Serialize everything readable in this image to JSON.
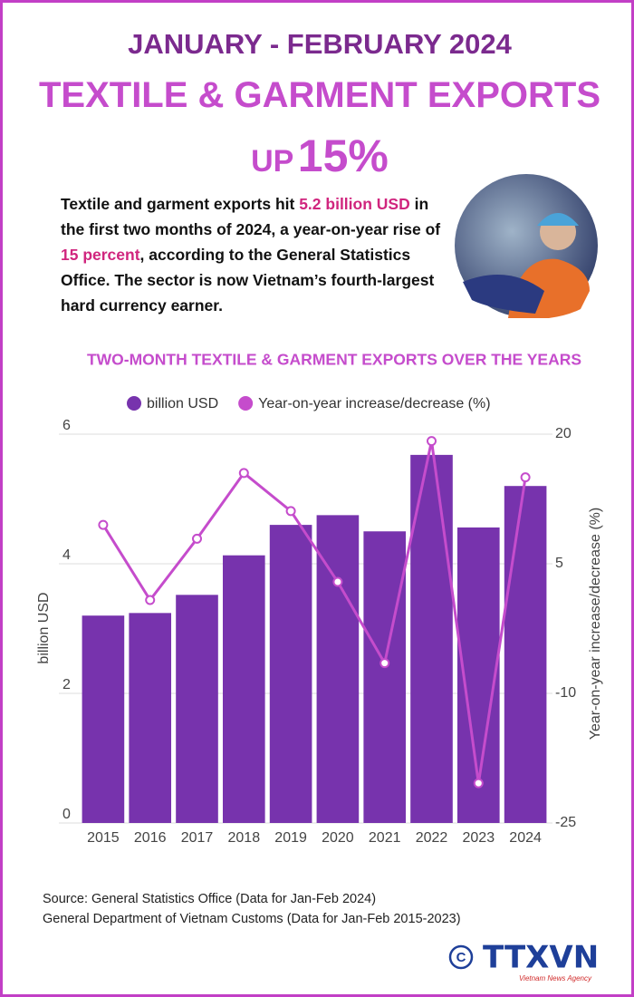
{
  "header": {
    "period": "JANUARY - FEBRUARY 2024",
    "title": "TEXTILE & GARMENT EXPORTS",
    "up": "UP",
    "growth": "15%"
  },
  "intro": [
    "Textile and garment exports hit ",
    "5.2 billion USD",
    " in the first two months of 2024, a year-on-year rise of ",
    "15 percent",
    ", according to the General Statistics Office. The sector is now Vietnam’s fourth-largest hard currency earner."
  ],
  "source": [
    "Source: General Statistics Office (Data for Jan-Feb 2024)",
    "General Department of Vietnam Customs (Data for Jan-Feb 2015-2023)"
  ],
  "logo": {
    "name": "TTXVN",
    "subtitle": "Vietnam News Agency"
  },
  "chart_data": {
    "type": "bar",
    "title": "TWO-MONTH TEXTILE & GARMENT EXPORTS OVER THE YEARS",
    "ylabel": "billion USD",
    "y2label": "Year-on-year increase/decrease (%)",
    "categories": [
      "2015",
      "2016",
      "2017",
      "2018",
      "2019",
      "2020",
      "2021",
      "2022",
      "2023",
      "2024"
    ],
    "series": [
      {
        "name": "billion USD",
        "type": "bar",
        "color": "#7733ad",
        "values": [
          3.2,
          3.24,
          3.52,
          4.13,
          4.6,
          4.75,
          4.5,
          5.68,
          4.56,
          5.2
        ]
      },
      {
        "name": "Year-on-year increase/decrease (%)",
        "type": "line",
        "axis": "y2",
        "color": "#c54ccc",
        "values": [
          9.5,
          0.8,
          7.9,
          15.5,
          11.1,
          2.9,
          -6.5,
          19.2,
          -20.4,
          15
        ]
      }
    ],
    "ylim": [
      0,
      6
    ],
    "yticks": [
      0,
      2,
      4,
      6
    ],
    "y2lim": [
      -25,
      20
    ],
    "y2ticks": [
      -25,
      -10,
      5,
      20
    ],
    "grid": true,
    "legend": "top"
  }
}
